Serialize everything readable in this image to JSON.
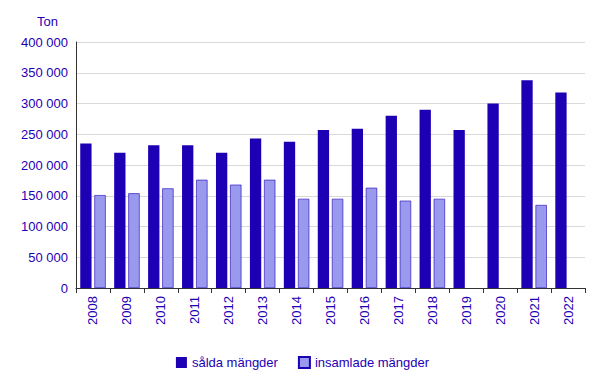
{
  "chart_data": {
    "type": "bar",
    "y_label": "Ton",
    "categories": [
      "2008",
      "2009",
      "2010",
      "2011",
      "2012",
      "2013",
      "2014",
      "2015",
      "2016",
      "2017",
      "2018",
      "2019",
      "2020",
      "2021",
      "2022"
    ],
    "series": [
      {
        "name": "sålda mängder",
        "color": "#1e00b4",
        "values": [
          235000,
          220000,
          232000,
          232000,
          220000,
          243000,
          238000,
          257000,
          259000,
          280000,
          290000,
          257000,
          300000,
          338000,
          318000
        ]
      },
      {
        "name": "insamlade mängder",
        "color": "#9999ee",
        "values": [
          151000,
          154000,
          162000,
          176000,
          168000,
          176000,
          145000,
          145000,
          163000,
          142000,
          145000,
          null,
          null,
          135000,
          null
        ]
      }
    ],
    "ylim": [
      0,
      400000
    ],
    "yticks": [
      0,
      {
        "value": 50000,
        "label": "50 000"
      },
      {
        "value": 100000,
        "label": "100 000"
      },
      {
        "value": 150000,
        "label": "150 000"
      },
      {
        "value": 200000,
        "label": "200 000"
      },
      {
        "value": 250000,
        "label": "250 000"
      },
      {
        "value": 300000,
        "label": "300 000"
      },
      {
        "value": 350000,
        "label": "350 000"
      },
      {
        "value": 400000,
        "label": "400 000"
      }
    ],
    "grid": true,
    "legend": "bottom"
  }
}
